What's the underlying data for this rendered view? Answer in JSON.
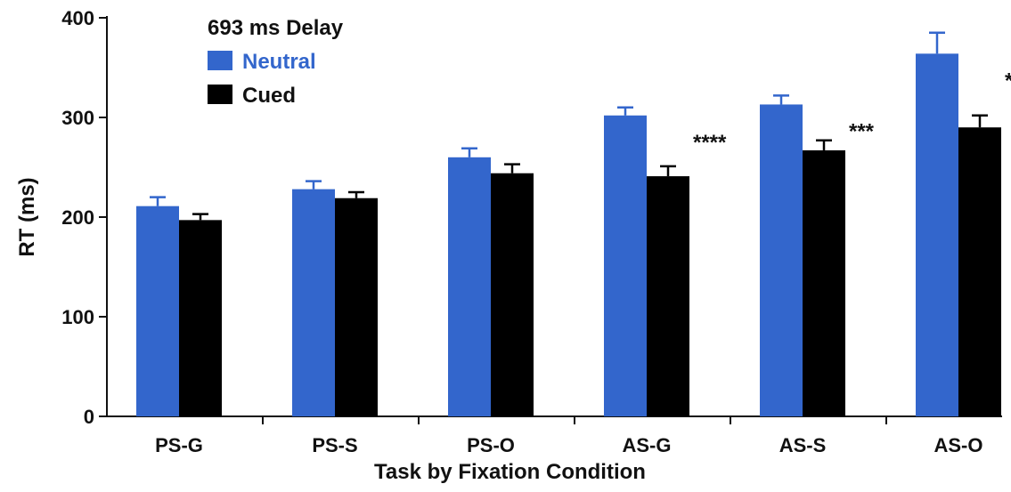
{
  "chart_data": {
    "type": "bar",
    "title": "693 ms Delay",
    "xlabel": "Task by Fixation Condition",
    "ylabel": "RT (ms)",
    "ylim": [
      0,
      400
    ],
    "yticks": [
      0,
      100,
      200,
      300,
      400
    ],
    "categories": [
      "PS-G",
      "PS-S",
      "PS-O",
      "AS-G",
      "AS-S",
      "AS-O"
    ],
    "series": [
      {
        "name": "Neutral",
        "color": "#3366cc",
        "values": [
          211,
          228,
          260,
          302,
          313,
          364
        ],
        "errors": [
          9,
          8,
          9,
          8,
          9,
          21
        ]
      },
      {
        "name": "Cued",
        "color": "#000000",
        "values": [
          197,
          219,
          244,
          241,
          267,
          290
        ],
        "errors": [
          6,
          6,
          9,
          10,
          10,
          12
        ]
      }
    ],
    "significance": [
      "",
      "",
      "",
      "****",
      "***",
      "****"
    ],
    "legend_position": "top-left",
    "grid": false
  }
}
